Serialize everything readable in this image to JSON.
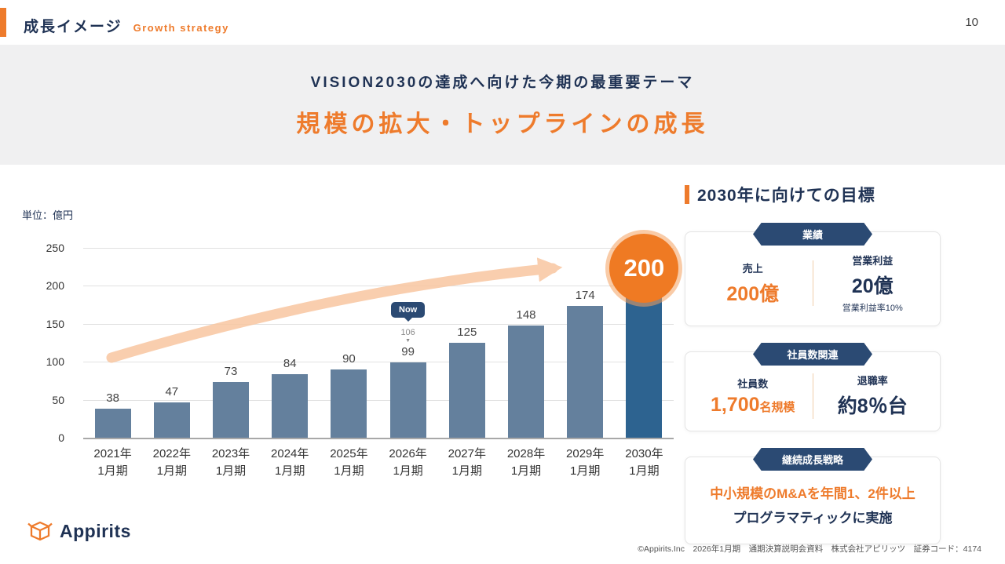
{
  "header": {
    "title_jp": "成長イメージ",
    "title_en": "Growth strategy",
    "page_number": "10"
  },
  "banner": {
    "subtitle": "VISION2030の達成へ向けた今期の最重要テーマ",
    "title": "規模の拡大・トップラインの成長"
  },
  "chart_data": {
    "type": "bar",
    "unit_label": "単位：億円",
    "categories": [
      {
        "year": "2021年",
        "period": "1月期"
      },
      {
        "year": "2022年",
        "period": "1月期"
      },
      {
        "year": "2023年",
        "period": "1月期"
      },
      {
        "year": "2024年",
        "period": "1月期"
      },
      {
        "year": "2025年",
        "period": "1月期"
      },
      {
        "year": "2026年",
        "period": "1月期"
      },
      {
        "year": "2027年",
        "period": "1月期"
      },
      {
        "year": "2028年",
        "period": "1月期"
      },
      {
        "year": "2029年",
        "period": "1月期"
      },
      {
        "year": "2030年",
        "period": "1月期"
      }
    ],
    "values": [
      38,
      47,
      73,
      84,
      90,
      99,
      125,
      148,
      174,
      200
    ],
    "ylim": [
      0,
      250
    ],
    "yticks": [
      0,
      50,
      100,
      150,
      200,
      250
    ],
    "now_marker": {
      "label": "Now",
      "secondary_value": "106",
      "category_index": 5
    },
    "highlight": {
      "index": 9,
      "label": "200"
    },
    "colors": {
      "bar": "#64809d",
      "highlight_bar": "#2d6390",
      "badge": "#ef7a23",
      "arrow": "#f8c6a0",
      "pin": "#2b4a73"
    },
    "title": "規模の拡大・トップラインの成長",
    "ylabel": "億円"
  },
  "goals": {
    "heading": "2030年に向けての目標",
    "cards": [
      {
        "badge": "業績",
        "left": {
          "label": "売上",
          "value": "200億"
        },
        "right": {
          "label": "営業利益",
          "value": "20億",
          "note": "営業利益率10%"
        }
      },
      {
        "badge": "社員数関連",
        "left": {
          "label": "社員数",
          "value": "1,700",
          "suffix": "名規模"
        },
        "right": {
          "label": "退職率",
          "value": "約8％台"
        }
      },
      {
        "badge": "継続成長戦略",
        "line1": "中小規模のM&Aを年間1、2件以上",
        "line2": "プログラマティックに実施"
      }
    ]
  },
  "footer": {
    "logo_text": "Appirits",
    "copyright": "©Appirits.Inc　2026年1月期　通期決算説明会資料　株式会社アピリッツ　証券コード：4174"
  }
}
